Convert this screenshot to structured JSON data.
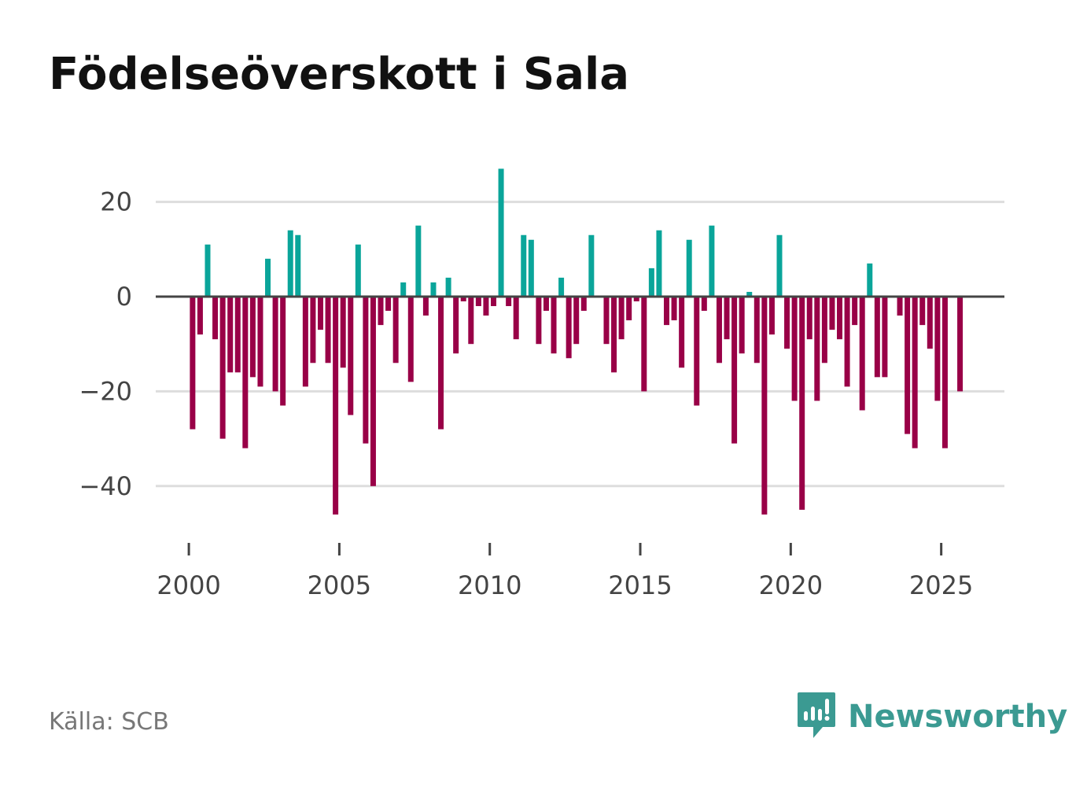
{
  "title": "Födelseöverskott i Sala",
  "source": "Källa: SCB",
  "brand": {
    "name": "Newsworthy",
    "logo_icon": "newsworthy-logo-icon"
  },
  "colors": {
    "positive": "#0aa59a",
    "negative": "#990047",
    "zero_line": "#444444",
    "grid": "#dddddd",
    "brand": "#3b9a92"
  },
  "chart_data": {
    "type": "bar",
    "title": "Födelseöverskott i Sala",
    "xlabel": "",
    "ylabel": "",
    "ylim": [
      -50,
      27
    ],
    "xlim": [
      1998.9,
      2027.1
    ],
    "y_ticks": [
      20,
      0,
      -20,
      -40
    ],
    "y_tick_labels": [
      "20",
      "0",
      "−20",
      "−40"
    ],
    "x_ticks": [
      2000,
      2005,
      2010,
      2015,
      2020,
      2025
    ],
    "x_tick_labels": [
      "2000",
      "2005",
      "2010",
      "2015",
      "2020",
      "2025"
    ],
    "start_year": 2000,
    "bars_per_year": 4,
    "values": [
      -28,
      -8,
      11,
      -9,
      -30,
      -16,
      -16,
      -32,
      -17,
      -19,
      8,
      -20,
      -23,
      14,
      13,
      -19,
      -14,
      -7,
      -14,
      -46,
      -15,
      -25,
      11,
      -31,
      -40,
      -6,
      -3,
      -14,
      3,
      -18,
      15,
      -4,
      3,
      -28,
      4,
      -12,
      -1,
      -10,
      -2,
      -4,
      -2,
      27,
      -2,
      -9,
      13,
      12,
      -10,
      -3,
      -12,
      4,
      -13,
      -10,
      -3,
      13,
      0,
      -10,
      -16,
      -9,
      -5,
      -1,
      -20,
      6,
      14,
      -6,
      -5,
      -15,
      12,
      -23,
      -3,
      15,
      -14,
      -9,
      -31,
      -12,
      1,
      -14,
      -46,
      -8,
      13,
      -11,
      -22,
      -45,
      -9,
      -22,
      -14,
      -7,
      -9,
      -19,
      -6,
      -24,
      7,
      -17,
      -17,
      0,
      -4,
      -29,
      -32,
      -6,
      -11,
      -22,
      -32,
      0,
      -20,
      0
    ]
  }
}
